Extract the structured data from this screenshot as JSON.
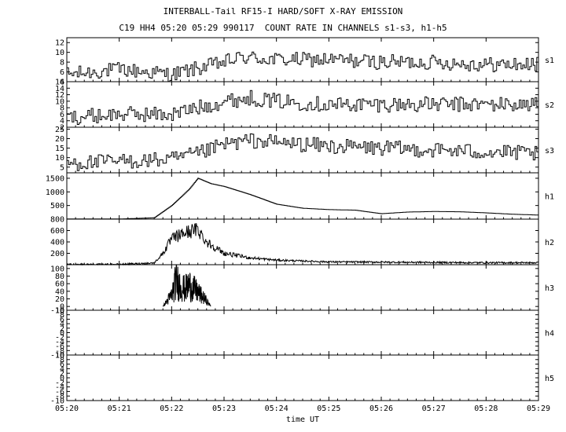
{
  "title": "INTERBALL-Tail RF15-I HARD/SOFT X-RAY EMISSION",
  "subtitle": "C19 HH4 05:20 05:29 990117  COUNT RATE IN CHANNELS s1-s3, h1-h5",
  "chart_data": {
    "type": "line",
    "title": "INTERBALL-Tail RF15-I HARD/SOFT X-RAY EMISSION",
    "subtitle": "C19 HH4 05:20 05:29 990117  COUNT RATE IN CHANNELS s1-s3, h1-h5",
    "xlabel": "time UT",
    "x_ticks": [
      "05:20",
      "05:21",
      "05:22",
      "05:23",
      "05:24",
      "05:25",
      "05:26",
      "05:27",
      "05:28",
      "05:29"
    ],
    "xlim": [
      "05:20",
      "05:29"
    ],
    "grid": false,
    "panels": [
      {
        "name": "s1",
        "ylim": [
          4,
          13
        ],
        "ticks": [
          "4",
          "6",
          "8",
          "10",
          "12"
        ],
        "x": [
          "05:20",
          "05:21",
          "05:22",
          "05:23",
          "05:23:20",
          "05:24",
          "05:25",
          "05:26",
          "05:27",
          "05:28",
          "05:29"
        ],
        "values": [
          5.5,
          6.5,
          5.5,
          8,
          9,
          8.5,
          8.5,
          8,
          8,
          7.5,
          7.5
        ]
      },
      {
        "name": "s2",
        "ylim": [
          2,
          16
        ],
        "ticks": [
          "2",
          "4",
          "6",
          "8",
          "10",
          "12",
          "14",
          "16"
        ],
        "x": [
          "05:20",
          "05:21",
          "05:22",
          "05:22:30",
          "05:23",
          "05:23:30",
          "05:24",
          "05:25",
          "05:26",
          "05:27",
          "05:28",
          "05:29"
        ],
        "values": [
          5,
          6,
          6,
          8,
          10,
          11,
          10,
          9,
          9,
          9,
          9,
          9
        ]
      },
      {
        "name": "s3",
        "ylim": [
          2,
          26
        ],
        "ticks": [
          "5",
          "10",
          "15",
          "20",
          "25"
        ],
        "x": [
          "05:20",
          "05:21",
          "05:22",
          "05:22:30",
          "05:23",
          "05:23:30",
          "05:24",
          "05:25",
          "05:26",
          "05:27",
          "05:28",
          "05:29"
        ],
        "values": [
          7,
          8,
          9,
          12,
          17,
          19,
          18,
          16,
          15,
          14,
          13,
          12
        ]
      },
      {
        "name": "h1",
        "ylim": [
          0,
          1700
        ],
        "ticks": [
          "500",
          "1000",
          "1500"
        ],
        "x": [
          "05:20",
          "05:21",
          "05:21:40",
          "05:22",
          "05:22:20",
          "05:22:30",
          "05:22:45",
          "05:23",
          "05:23:30",
          "05:24",
          "05:24:30",
          "05:25",
          "05:25:30",
          "05:26",
          "05:26:30",
          "05:27",
          "05:27:30",
          "05:28",
          "05:28:30",
          "05:29"
        ],
        "values": [
          5,
          5,
          50,
          500,
          1100,
          1500,
          1300,
          1200,
          900,
          550,
          400,
          350,
          330,
          200,
          260,
          280,
          270,
          230,
          180,
          150
        ]
      },
      {
        "name": "h2",
        "ylim": [
          0,
          800
        ],
        "ticks": [
          "200",
          "400",
          "600",
          "800"
        ],
        "x": [
          "05:20",
          "05:21",
          "05:21:40",
          "05:21:50",
          "05:22",
          "05:22:15",
          "05:22:30",
          "05:22:40",
          "05:23",
          "05:23:30",
          "05:24",
          "05:25",
          "05:26",
          "05:27",
          "05:28",
          "05:29"
        ],
        "values": [
          5,
          5,
          30,
          200,
          450,
          560,
          620,
          400,
          200,
          120,
          80,
          50,
          45,
          40,
          35,
          35
        ]
      },
      {
        "name": "h3",
        "ylim": [
          -10,
          110
        ],
        "ticks": [
          "-10",
          "0",
          "20",
          "40",
          "60",
          "80",
          "100"
        ],
        "x": [
          "05:21:50",
          "05:22",
          "05:22:05",
          "05:22:15",
          "05:22:20",
          "05:22:30",
          "05:22:40",
          "05:22:45"
        ],
        "values": [
          0,
          40,
          90,
          60,
          75,
          50,
          20,
          0
        ]
      },
      {
        "name": "h4",
        "ylim": [
          -10,
          10
        ],
        "ticks": [
          "-10",
          "-8",
          "-6",
          "-4",
          "-2",
          "0",
          "2",
          "4",
          "6",
          "8",
          "10"
        ],
        "x": [],
        "values": []
      },
      {
        "name": "h5",
        "ylim": [
          -10,
          10
        ],
        "ticks": [
          "-10",
          "-8",
          "-6",
          "-4",
          "-2",
          "0",
          "2",
          "4",
          "6",
          "8",
          "10"
        ],
        "x": [],
        "values": []
      }
    ]
  }
}
